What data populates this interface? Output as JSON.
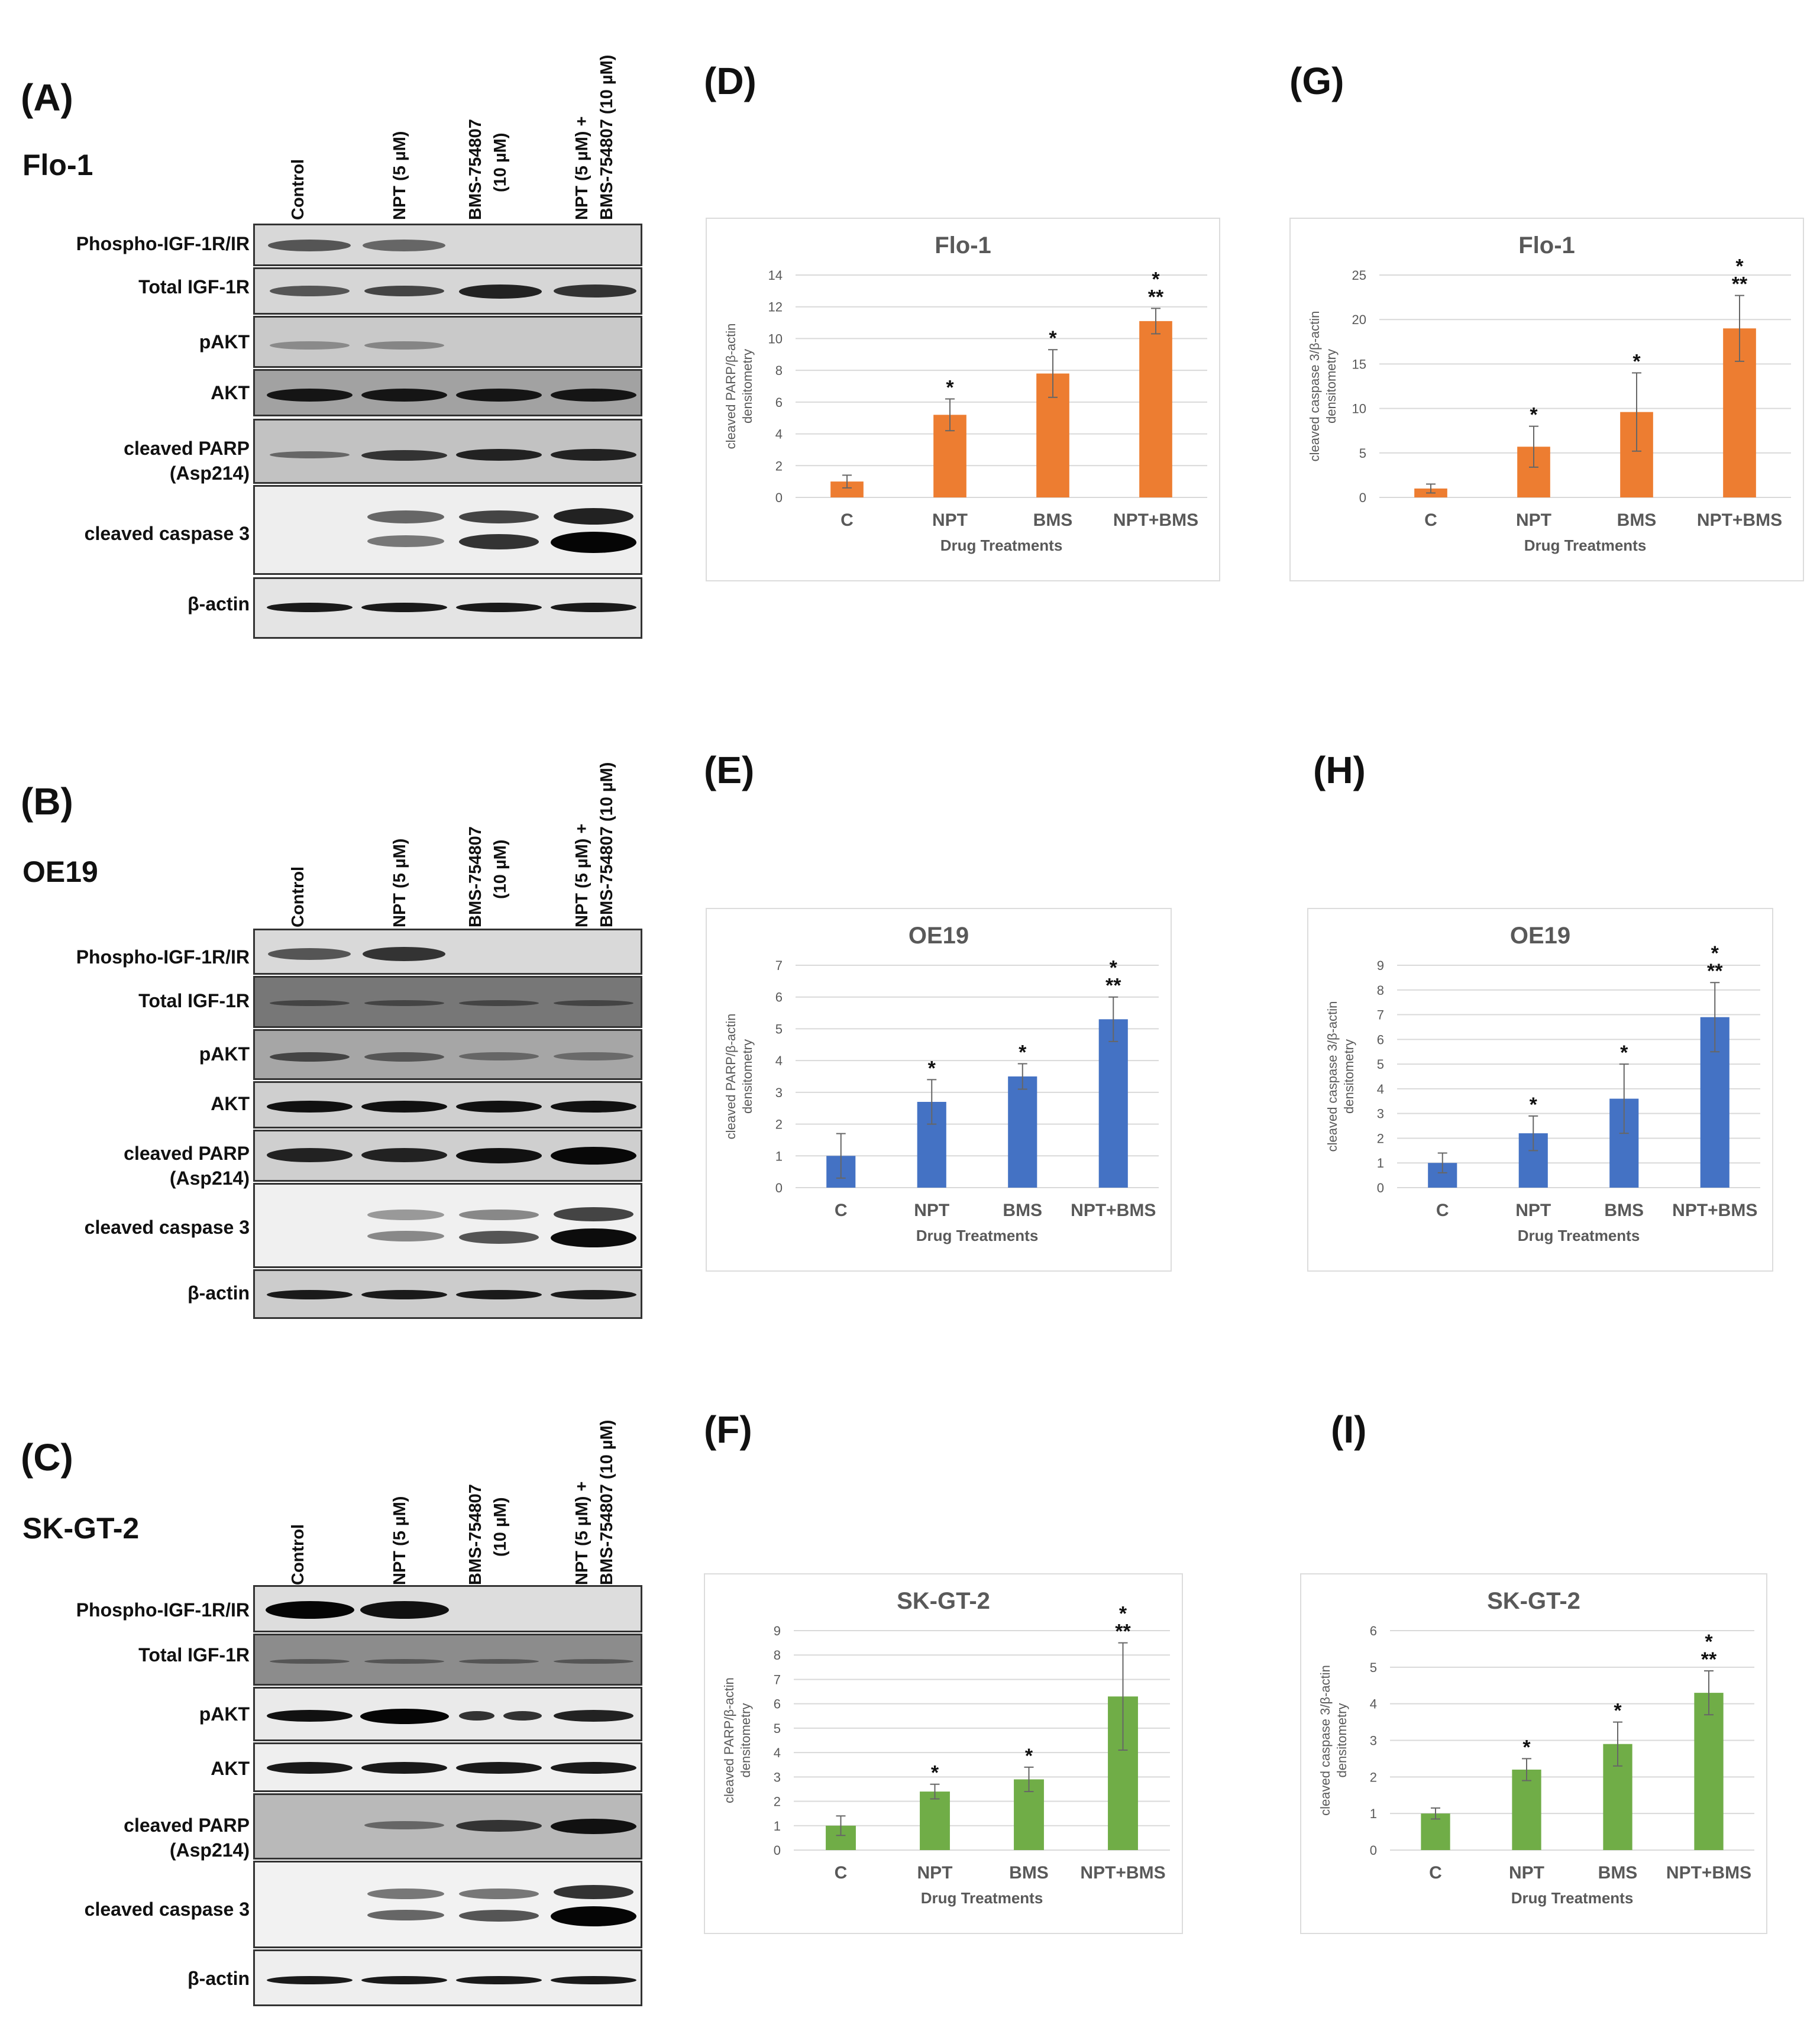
{
  "panels": {
    "A": "(A)",
    "B": "(B)",
    "C": "(C)",
    "D": "(D)",
    "E": "(E)",
    "F": "(F)",
    "G": "(G)",
    "H": "(H)",
    "I": "(I)"
  },
  "western_blots": [
    {
      "letter": "(A)",
      "cell_line": "Flo-1",
      "lanes": [
        "Control",
        "NPT (5 µM)",
        "BMS-754807",
        "(10 µM)",
        "NPT (5 µM) +",
        "BMS-754807 (10 µM)"
      ],
      "rows": [
        {
          "label": "Phospho-IGF-1R/IR"
        },
        {
          "label": "Total IGF-1R"
        },
        {
          "label": "pAKT"
        },
        {
          "label": "AKT"
        },
        {
          "label": "cleaved PARP",
          "label2": "(Asp214)"
        },
        {
          "label": "cleaved caspase 3"
        },
        {
          "label": "β-actin"
        }
      ]
    },
    {
      "letter": "(B)",
      "cell_line": "OE19",
      "lanes": [
        "Control",
        "NPT (5 µM)",
        "BMS-754807",
        "(10 µM)",
        "NPT (5 µM) +",
        "BMS-754807 (10 µM)"
      ],
      "rows": [
        {
          "label": "Phospho-IGF-1R/IR"
        },
        {
          "label": "Total IGF-1R"
        },
        {
          "label": "pAKT"
        },
        {
          "label": "AKT"
        },
        {
          "label": "cleaved PARP",
          "label2": "(Asp214)"
        },
        {
          "label": "cleaved caspase 3"
        },
        {
          "label": "β-actin"
        }
      ]
    },
    {
      "letter": "(C)",
      "cell_line": "SK-GT-2",
      "lanes": [
        "Control",
        "NPT (5 µM)",
        "BMS-754807",
        "(10 µM)",
        "NPT (5 µM) +",
        "BMS-754807 (10 µM)"
      ],
      "rows": [
        {
          "label": "Phospho-IGF-1R/IR"
        },
        {
          "label": "Total IGF-1R"
        },
        {
          "label": "pAKT"
        },
        {
          "label": "AKT"
        },
        {
          "label": "cleaved PARP",
          "label2": "(Asp214)"
        },
        {
          "label": "cleaved caspase 3"
        },
        {
          "label": "β-actin"
        }
      ]
    }
  ],
  "colors": {
    "orange": "#ed7d31",
    "blue": "#4472c4",
    "green": "#70ad47",
    "grid": "#d9d9d9",
    "axis_text": "#595959"
  },
  "chart_data": [
    {
      "panel": "(D)",
      "type": "bar",
      "title": "Flo-1",
      "categories": [
        "C",
        "NPT",
        "BMS",
        "NPT+BMS"
      ],
      "values": [
        1.0,
        5.2,
        7.8,
        11.1
      ],
      "errors": [
        0.4,
        1.0,
        1.5,
        0.8
      ],
      "significance": [
        "",
        "*",
        "*",
        "*|**"
      ],
      "ylim": [
        0,
        14
      ],
      "yticks": [
        0,
        2,
        4,
        6,
        8,
        10,
        12,
        14
      ],
      "ylabel_line1": "cleaved PARP/β-actin",
      "ylabel_line2": "densitometry",
      "xlabel": "Drug Treatments",
      "color": "#ed7d31"
    },
    {
      "panel": "(E)",
      "type": "bar",
      "title": "OE19",
      "categories": [
        "C",
        "NPT",
        "BMS",
        "NPT+BMS"
      ],
      "values": [
        1.0,
        2.7,
        3.5,
        5.3
      ],
      "errors": [
        0.7,
        0.7,
        0.4,
        0.7
      ],
      "significance": [
        "",
        "*",
        "*",
        "*|**"
      ],
      "ylim": [
        0,
        7
      ],
      "yticks": [
        0,
        1,
        2,
        3,
        4,
        5,
        6,
        7
      ],
      "ylabel_line1": "cleaved PARP/β-actin",
      "ylabel_line2": "densitometry",
      "xlabel": "Drug Treatments",
      "color": "#4472c4"
    },
    {
      "panel": "(F)",
      "type": "bar",
      "title": "SK-GT-2",
      "categories": [
        "C",
        "NPT",
        "BMS",
        "NPT+BMS"
      ],
      "values": [
        1.0,
        2.4,
        2.9,
        6.3
      ],
      "errors": [
        0.4,
        0.3,
        0.5,
        2.2
      ],
      "significance": [
        "",
        "*",
        "*",
        "*|**"
      ],
      "ylim": [
        0,
        9
      ],
      "yticks": [
        0,
        1,
        2,
        3,
        4,
        5,
        6,
        7,
        8,
        9
      ],
      "ylabel_line1": "cleaved PARP/β-actin",
      "ylabel_line2": "densitometry",
      "xlabel": "Drug Treatments",
      "color": "#70ad47"
    },
    {
      "panel": "(G)",
      "type": "bar",
      "title": "Flo-1",
      "categories": [
        "C",
        "NPT",
        "BMS",
        "NPT+BMS"
      ],
      "values": [
        1.0,
        5.7,
        9.6,
        19.0
      ],
      "errors": [
        0.5,
        2.3,
        4.4,
        3.7
      ],
      "significance": [
        "",
        "*",
        "*",
        "*|**"
      ],
      "ylim": [
        0,
        25
      ],
      "yticks": [
        0,
        5,
        10,
        15,
        20,
        25
      ],
      "ylabel_line1": "cleaved caspase 3/β-actin",
      "ylabel_line2": "densitometry",
      "xlabel": "Drug Treatments",
      "color": "#ed7d31"
    },
    {
      "panel": "(H)",
      "type": "bar",
      "title": "OE19",
      "categories": [
        "C",
        "NPT",
        "BMS",
        "NPT+BMS"
      ],
      "values": [
        1.0,
        2.2,
        3.6,
        6.9
      ],
      "errors": [
        0.4,
        0.7,
        1.4,
        1.4
      ],
      "significance": [
        "",
        "*",
        "*",
        "*|**"
      ],
      "ylim": [
        0,
        9
      ],
      "yticks": [
        0,
        1,
        2,
        3,
        4,
        5,
        6,
        7,
        8,
        9
      ],
      "ylabel_line1": "cleaved caspase 3/β-actin",
      "ylabel_line2": "densitometry",
      "xlabel": "Drug Treatments",
      "color": "#4472c4"
    },
    {
      "panel": "(I)",
      "type": "bar",
      "title": "SK-GT-2",
      "categories": [
        "C",
        "NPT",
        "BMS",
        "NPT+BMS"
      ],
      "values": [
        1.0,
        2.2,
        2.9,
        4.3
      ],
      "errors": [
        0.15,
        0.3,
        0.6,
        0.6
      ],
      "significance": [
        "",
        "*",
        "*",
        "*|**"
      ],
      "ylim": [
        0,
        6
      ],
      "yticks": [
        0,
        1,
        2,
        3,
        4,
        5,
        6
      ],
      "ylabel_line1": "cleaved caspase 3/β-actin",
      "ylabel_line2": "densitometry",
      "xlabel": "Drug Treatments",
      "color": "#70ad47"
    }
  ]
}
